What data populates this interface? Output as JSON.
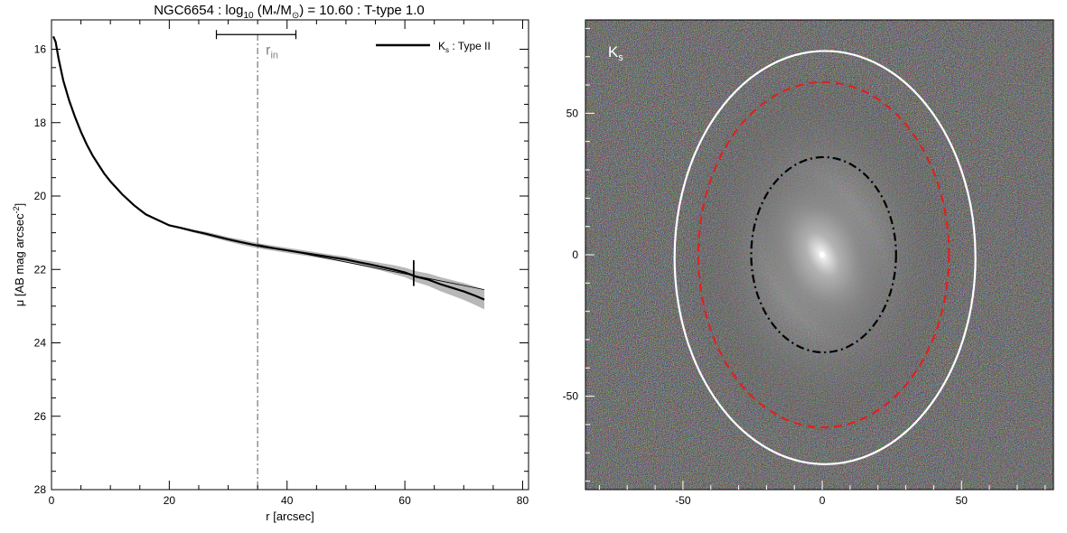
{
  "title": {
    "prefix": "NGC6654 : log",
    "sub": "10",
    "mid": " (M",
    "star": "*",
    "slash": "/M",
    "sun": "⊙",
    "suffix": ") = 10.60 : T-type 1.0"
  },
  "chart_data": [
    {
      "type": "line",
      "xlabel": "r [arcsec]",
      "ylabel": {
        "main": "μ [AB mag arcsec",
        "sup": "-2",
        "end": "]"
      },
      "xlim": [
        0,
        81
      ],
      "ylim": [
        28,
        15.2
      ],
      "y_inverted": true,
      "xticks": [
        0,
        20,
        40,
        60,
        80
      ],
      "yticks": [
        16,
        18,
        20,
        22,
        24,
        26,
        28
      ],
      "legend": {
        "position": "top-right",
        "label_main": "K",
        "label_sub": "s",
        "label_rest": " : Type II"
      },
      "series": [
        {
          "name": "K_s : Type II",
          "x": [
            0.3,
            0.7,
            1.2,
            2,
            3,
            4,
            5,
            6,
            7,
            8,
            9,
            10,
            12,
            14,
            16,
            18,
            20,
            22,
            24,
            26,
            28,
            30,
            32,
            34,
            36,
            38,
            40,
            42,
            44,
            46,
            48,
            50,
            52,
            54,
            56,
            58,
            60,
            62,
            64,
            66,
            68,
            70,
            72,
            73.5
          ],
          "y": [
            15.65,
            15.8,
            16.25,
            16.85,
            17.4,
            17.85,
            18.25,
            18.6,
            18.9,
            19.15,
            19.4,
            19.6,
            19.95,
            20.25,
            20.5,
            20.65,
            20.8,
            20.87,
            20.95,
            21.02,
            21.1,
            21.18,
            21.25,
            21.32,
            21.38,
            21.43,
            21.48,
            21.53,
            21.58,
            21.63,
            21.68,
            21.73,
            21.8,
            21.86,
            21.93,
            22.0,
            22.08,
            22.2,
            22.28,
            22.4,
            22.5,
            22.6,
            22.72,
            22.82
          ],
          "band_halfwidth": [
            0,
            0,
            0,
            0,
            0,
            0,
            0,
            0,
            0,
            0,
            0,
            0,
            0,
            0,
            0,
            0,
            0.02,
            0.03,
            0.04,
            0.05,
            0.06,
            0.06,
            0.07,
            0.07,
            0.07,
            0.07,
            0.07,
            0.07,
            0.07,
            0.07,
            0.07,
            0.08,
            0.08,
            0.09,
            0.1,
            0.12,
            0.13,
            0.15,
            0.17,
            0.19,
            0.21,
            0.23,
            0.25,
            0.27
          ]
        }
      ],
      "fit_line": {
        "x1": 35,
        "y1": 21.32,
        "x2": 73.5,
        "y2": 22.55
      },
      "r_in": {
        "label_main": "r",
        "label_sub": "in",
        "value": 35,
        "range": [
          28,
          41.5
        ],
        "bar_y": 15.6
      },
      "break_marker": {
        "x": 61.5,
        "y_range": [
          21.75,
          22.45
        ]
      }
    },
    {
      "type": "image",
      "label_main": "K",
      "label_sub": "s",
      "xlim": [
        -85,
        83
      ],
      "ylim": [
        -83,
        83
      ],
      "xticks": [
        -50,
        0,
        50
      ],
      "yticks": [
        -50,
        0,
        50
      ],
      "ellipses": [
        {
          "name": "outer",
          "style": "solid",
          "color": "#ffffff",
          "cx": 1,
          "cy": -1,
          "rx": 54,
          "ry": 73
        },
        {
          "name": "break",
          "style": "dashed",
          "color": "#e02020",
          "cx": 0.5,
          "cy": 0,
          "rx": 45,
          "ry": 61
        },
        {
          "name": "inner",
          "style": "dash-dot",
          "color": "#000000",
          "cx": 0.5,
          "cy": 0,
          "rx": 26,
          "ry": 34.5
        }
      ],
      "background": "#202020"
    }
  ]
}
